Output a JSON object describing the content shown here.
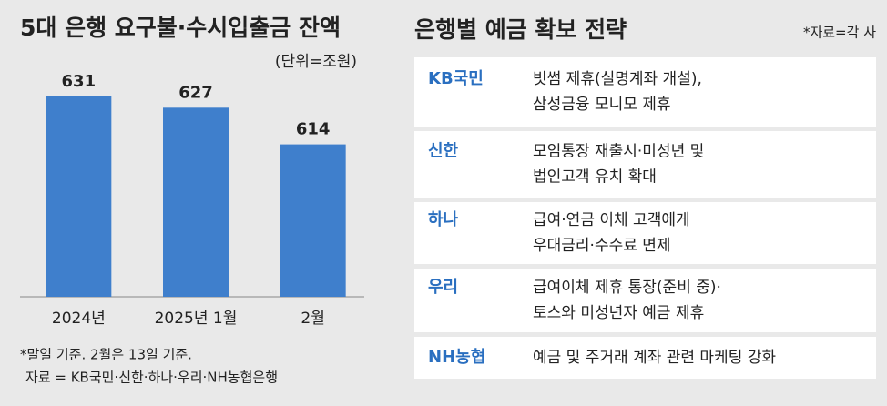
{
  "chart_data": {
    "type": "bar",
    "title": "5대 은행 요구불·수시입출금 잔액",
    "subtitle": "(단위=조원)",
    "categories": [
      "2024년",
      "2025년 1월",
      "2월"
    ],
    "values": [
      631,
      627,
      614
    ],
    "color": "#3f7fcc",
    "ylim": [
      560,
      640
    ],
    "notes": [
      "*말일 기준. 2월은 13일 기준.",
      "자료 = KB국민·신한·하나·우리·NH농협은행"
    ]
  },
  "table": {
    "title": "은행별 예금 확보 전략",
    "source": "*자료=각 사",
    "rows": [
      {
        "bank": "KB국민",
        "lines": [
          "빗썸 제휴(실명계좌 개설),",
          "삼성금융 모니모 제휴"
        ]
      },
      {
        "bank": "신한",
        "lines": [
          "모임통장 재출시·미성년 및",
          "법인고객  유치 확대"
        ]
      },
      {
        "bank": "하나",
        "lines": [
          "급여·연금 이체 고객에게",
          "우대금리·수수료 면제"
        ]
      },
      {
        "bank": "우리",
        "lines": [
          "급여이체 제휴 통장(준비 중)·",
          "토스와 미성년자 예금 제휴"
        ]
      },
      {
        "bank": "NH농협",
        "lines": [
          "예금 및 주거래 계좌 관련 마케팅 강화"
        ]
      }
    ]
  }
}
